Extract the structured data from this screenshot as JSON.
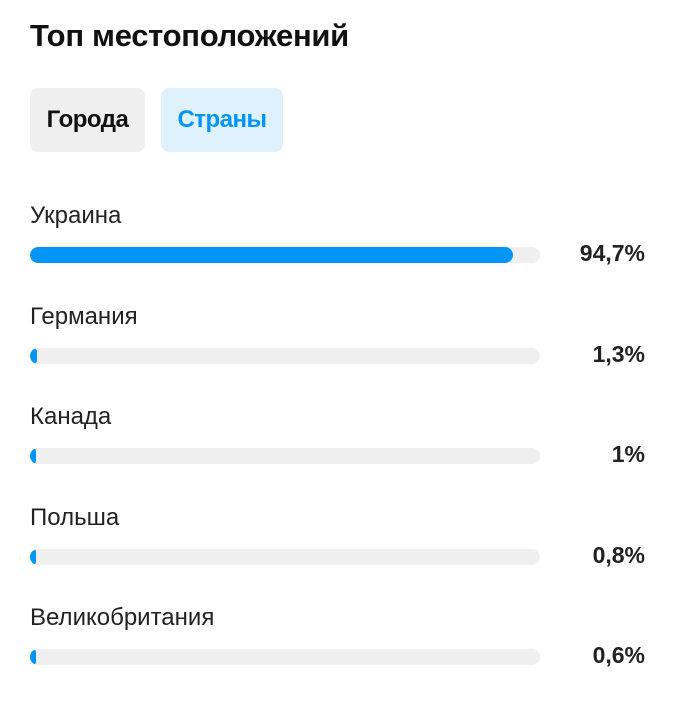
{
  "header": {
    "title": "Топ местоположений"
  },
  "tabs": [
    {
      "label": "Города",
      "active": false
    },
    {
      "label": "Страны",
      "active": true
    }
  ],
  "accent_color": "#0095f6",
  "locations": [
    {
      "name": "Украина",
      "percent_label": "94,7%",
      "value": 94.7
    },
    {
      "name": "Германия",
      "percent_label": "1,3%",
      "value": 1.3
    },
    {
      "name": "Канада",
      "percent_label": "1%",
      "value": 1
    },
    {
      "name": "Польша",
      "percent_label": "0,8%",
      "value": 0.8
    },
    {
      "name": "Великобритания",
      "percent_label": "0,6%",
      "value": 0.6
    }
  ]
}
